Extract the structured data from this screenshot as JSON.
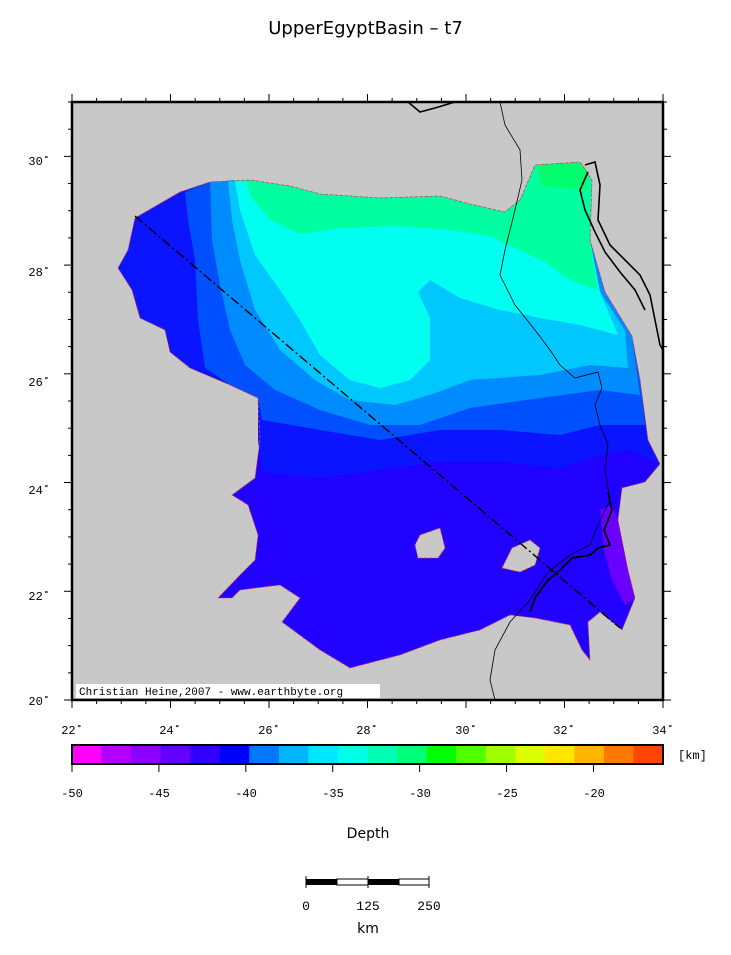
{
  "title": "UpperEgyptBasin – t7",
  "map": {
    "lon_ticks": [
      "22˚",
      "24˚",
      "26˚",
      "28˚",
      "30˚",
      "32˚",
      "34˚"
    ],
    "lat_ticks": [
      "20˚",
      "22˚",
      "24˚",
      "26˚",
      "28˚",
      "30˚"
    ],
    "lon_range": [
      22,
      34
    ],
    "lat_range": [
      20,
      31
    ],
    "credit": "Christian Heine,2007 - www.earthbyte.org",
    "land_color": "#c8c8c8",
    "outline_color": "#e03c3c"
  },
  "colorbar": {
    "ticks": [
      "-50",
      "-45",
      "-40",
      "-35",
      "-30",
      "-25",
      "-20"
    ],
    "unit": "[km]",
    "label": "Depth",
    "range": [
      -50,
      -16
    ],
    "step": 2,
    "colors": [
      "#ff00ff",
      "#b400ff",
      "#8c00ff",
      "#6400ff",
      "#3200ff",
      "#0000ff",
      "#0078ff",
      "#00b4ff",
      "#00e6ff",
      "#00ffe6",
      "#00ffb4",
      "#00ff78",
      "#00ff00",
      "#50ff00",
      "#a0ff00",
      "#dcff00",
      "#ffe600",
      "#ffb400",
      "#ff7800",
      "#ff4600"
    ]
  },
  "scale": {
    "ticks": [
      "0",
      "125",
      "250"
    ],
    "unit": "km"
  }
}
